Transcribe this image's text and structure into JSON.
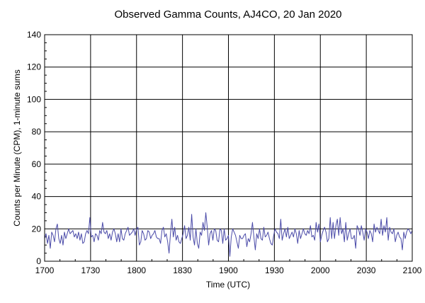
{
  "chart_data": {
    "type": "line",
    "title": "Observed Gamma Counts, AJ4CO, 20 Jan 2020",
    "xlabel": "Time (UTC)",
    "ylabel": "Counts per Minute (CPM), 1-minute sums",
    "x_range": [
      "17:00",
      "21:00"
    ],
    "x_tick_labels": [
      "1700",
      "1730",
      "1800",
      "1830",
      "1900",
      "1930",
      "2000",
      "2030",
      "2100"
    ],
    "ylim": [
      0,
      140
    ],
    "y_ticks": [
      0,
      20,
      40,
      60,
      80,
      100,
      120,
      140
    ],
    "grid": true,
    "line_color": "#4a4aa8",
    "series": [
      {
        "x_start": "17:00",
        "interval": "1 minute",
        "values": [
          14,
          17,
          11,
          16,
          8,
          18,
          16,
          12,
          20,
          23,
          14,
          11,
          16,
          10,
          18,
          14,
          17,
          20,
          17,
          18,
          19,
          15,
          17,
          14,
          18,
          13,
          17,
          11,
          12,
          17,
          19,
          17,
          27,
          15,
          16,
          12,
          17,
          16,
          13,
          19,
          17,
          24,
          18,
          17,
          19,
          14,
          17,
          13,
          18,
          20,
          17,
          12,
          17,
          12,
          20,
          14,
          13,
          17,
          19,
          21,
          16,
          17,
          18,
          20,
          16,
          20,
          21,
          10,
          12,
          19,
          17,
          13,
          14,
          19,
          18,
          14,
          16,
          17,
          19,
          15,
          14,
          14,
          11,
          19,
          21,
          15,
          17,
          12,
          5,
          17,
          26,
          15,
          21,
          13,
          16,
          12,
          11,
          14,
          17,
          22,
          14,
          16,
          21,
          13,
          29,
          15,
          10,
          20,
          11,
          8,
          18,
          16,
          24,
          19,
          30,
          21,
          10,
          17,
          19,
          13,
          20,
          19,
          13,
          12,
          20,
          19,
          11,
          20,
          13,
          14,
          16,
          3,
          15,
          20,
          18,
          16,
          12,
          8,
          16,
          14,
          14,
          16,
          17,
          9,
          14,
          12,
          17,
          24,
          15,
          7,
          17,
          14,
          20,
          14,
          13,
          21,
          15,
          16,
          18,
          14,
          11,
          10,
          16,
          20,
          18,
          17,
          14,
          26,
          13,
          17,
          20,
          15,
          21,
          14,
          16,
          18,
          15,
          20,
          17,
          11,
          19,
          14,
          17,
          20,
          17,
          16,
          19,
          17,
          22,
          15,
          16,
          13,
          24,
          18,
          23,
          12,
          16,
          19,
          21,
          18,
          12,
          14,
          27,
          14,
          24,
          14,
          22,
          26,
          16,
          27,
          17,
          20,
          12,
          24,
          13,
          17,
          20,
          14,
          14,
          16,
          8,
          22,
          20,
          16,
          22,
          18,
          13,
          20,
          18,
          14,
          19,
          17,
          12,
          23,
          18,
          21,
          19,
          17,
          26,
          16,
          22,
          18,
          27,
          13,
          21,
          18,
          17,
          20,
          12,
          16,
          18,
          15,
          14,
          7,
          18,
          14,
          18,
          20,
          19,
          17,
          19
        ]
      }
    ]
  }
}
